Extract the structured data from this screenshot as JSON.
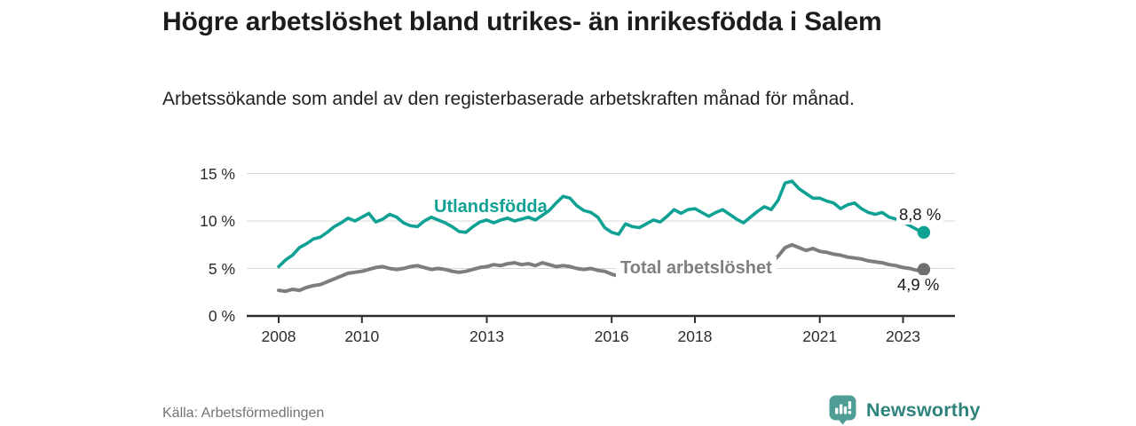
{
  "header": {
    "title": "Högre arbetslöshet bland utrikes- än inrikesfödda i Salem",
    "subtitle": "Arbetssökande som andel av den registerbaserade arbetskraften månad för månad."
  },
  "footer": {
    "source": "Källa: Arbetsförmedlingen",
    "brand_name": "Newsworthy",
    "brand_icon": "newsworthy-speech-bubble-bar-chart-icon",
    "brand_color": "#4f9d95",
    "brand_text_color": "#2e837c"
  },
  "chart_data": {
    "type": "line",
    "title": "Högre arbetslöshet bland utrikes- än inrikesfödda i Salem",
    "subtitle": "Arbetssökande som andel av den registerbaserade arbetskraften månad för månad.",
    "xlabel": "",
    "ylabel": "",
    "grid": "horizontal",
    "legend_position": "inline-labels",
    "ylim": [
      0,
      15.5
    ],
    "xlim": [
      2007.2,
      2024.3
    ],
    "y_tick_values": [
      0,
      5,
      10,
      15
    ],
    "y_tick_labels": [
      "0 %",
      "5 %",
      "10 %",
      "15 %"
    ],
    "x_tick_values": [
      2008,
      2010,
      2013,
      2016,
      2018,
      2021,
      2023
    ],
    "x_tick_labels": [
      "2008",
      "2010",
      "2013",
      "2016",
      "2018",
      "2021",
      "2023"
    ],
    "x_start": 2008.0,
    "x_step_years": 0.1667,
    "x_end": 2023.5,
    "series": [
      {
        "name": "Utlandsfödda",
        "color": "#0fa294",
        "end_value": 8.8,
        "end_label": "8,8 %",
        "values": [
          5.2,
          5.9,
          6.4,
          7.2,
          7.6,
          8.1,
          8.3,
          8.8,
          9.4,
          9.8,
          10.3,
          10.0,
          10.4,
          10.8,
          9.9,
          10.2,
          10.7,
          10.4,
          9.8,
          9.5,
          9.4,
          10.0,
          10.4,
          10.1,
          9.8,
          9.4,
          8.9,
          8.8,
          9.4,
          9.9,
          10.1,
          9.8,
          10.1,
          10.3,
          10.0,
          10.2,
          10.4,
          10.1,
          10.6,
          11.1,
          11.9,
          12.6,
          12.4,
          11.6,
          11.1,
          10.9,
          10.4,
          9.3,
          8.8,
          8.6,
          9.7,
          9.4,
          9.3,
          9.7,
          10.1,
          9.9,
          10.5,
          11.2,
          10.8,
          11.2,
          11.3,
          10.9,
          10.5,
          10.9,
          11.2,
          10.7,
          10.2,
          9.8,
          10.4,
          11.0,
          11.5,
          11.2,
          12.2,
          14.0,
          14.2,
          13.4,
          12.9,
          12.4,
          12.4,
          12.1,
          11.9,
          11.3,
          11.7,
          11.9,
          11.3,
          10.9,
          10.7,
          10.9,
          10.4,
          10.2,
          9.9,
          9.5,
          9.1,
          8.8
        ]
      },
      {
        "name": "Total arbetslöshet",
        "color": "#7d7d7d",
        "end_value": 4.9,
        "end_label": "4,9 %",
        "values": [
          2.7,
          2.6,
          2.8,
          2.7,
          3.0,
          3.2,
          3.3,
          3.6,
          3.9,
          4.2,
          4.5,
          4.6,
          4.7,
          4.9,
          5.1,
          5.2,
          5.0,
          4.9,
          5.0,
          5.2,
          5.3,
          5.1,
          4.9,
          5.0,
          4.9,
          4.7,
          4.6,
          4.7,
          4.9,
          5.1,
          5.2,
          5.4,
          5.3,
          5.5,
          5.6,
          5.4,
          5.5,
          5.3,
          5.6,
          5.4,
          5.2,
          5.3,
          5.2,
          5.0,
          4.9,
          5.0,
          4.8,
          4.7,
          4.4,
          4.2,
          4.5,
          4.4,
          4.6,
          4.5,
          4.7,
          4.6,
          4.8,
          4.7,
          4.6,
          4.7,
          4.6,
          4.5,
          4.6,
          4.5,
          4.6,
          4.5,
          4.6,
          4.7,
          4.8,
          5.0,
          5.3,
          5.6,
          6.3,
          7.2,
          7.5,
          7.2,
          6.9,
          7.1,
          6.8,
          6.7,
          6.5,
          6.4,
          6.2,
          6.1,
          6.0,
          5.8,
          5.7,
          5.6,
          5.4,
          5.3,
          5.1,
          5.0,
          4.8,
          4.9
        ]
      }
    ],
    "axis_color": "#2f2f2f",
    "gridline_color": "#d9d9d9"
  }
}
